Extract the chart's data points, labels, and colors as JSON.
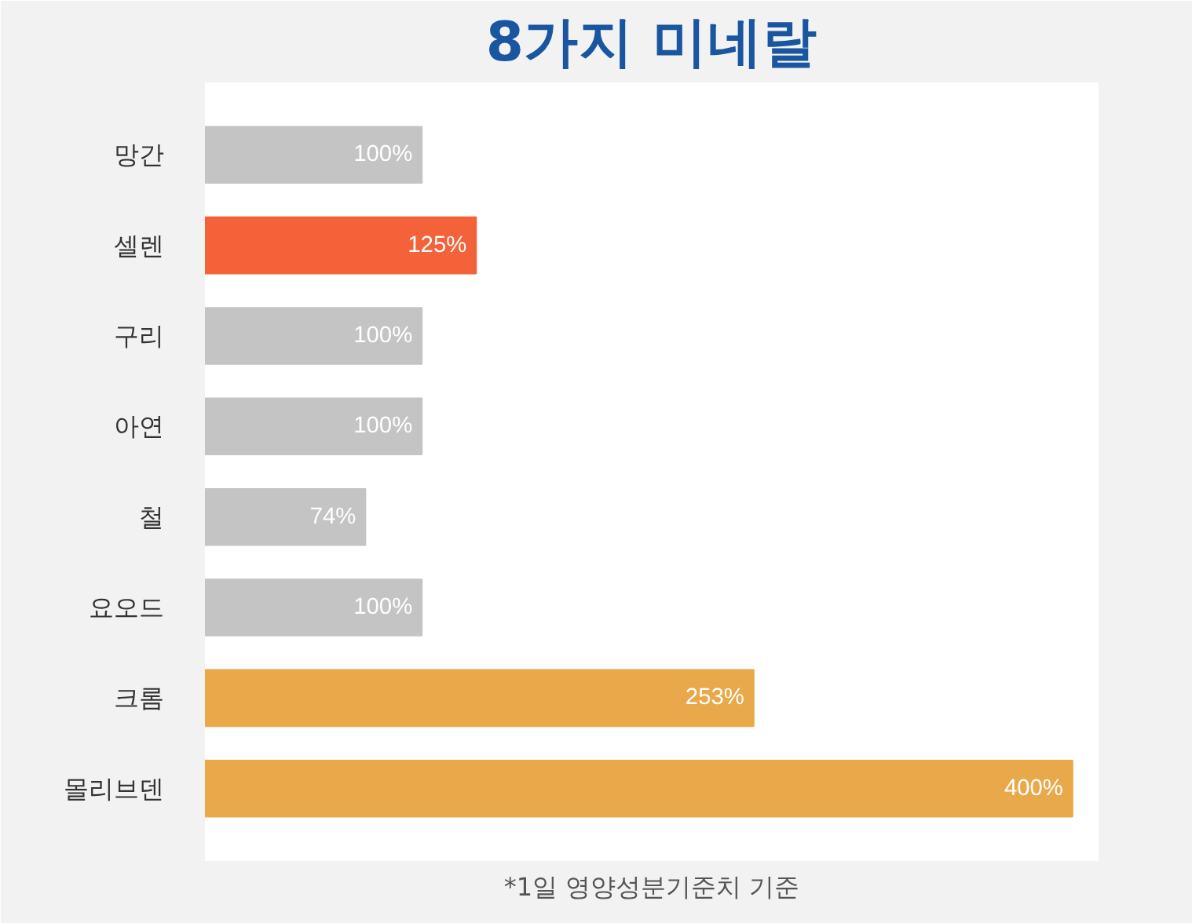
{
  "chart_data": {
    "type": "bar",
    "orientation": "horizontal",
    "title": "8가지 미네랄",
    "categories": [
      "망간",
      "셀렌",
      "구리",
      "아연",
      "철",
      "요오드",
      "크롬",
      "몰리브덴"
    ],
    "values": [
      100,
      125,
      100,
      100,
      74,
      100,
      253,
      400
    ],
    "colors": [
      "#c4c4c4",
      "#f4623a",
      "#c4c4c4",
      "#c4c4c4",
      "#c4c4c4",
      "#c4c4c4",
      "#e9a94a",
      "#e9a94a"
    ],
    "value_labels": [
      "100%",
      "125%",
      "100%",
      "100%",
      "74%",
      "100%",
      "253%",
      "400%"
    ],
    "annotations": [
      "*1일 영양성분기준치 기준"
    ],
    "grid": false
  }
}
